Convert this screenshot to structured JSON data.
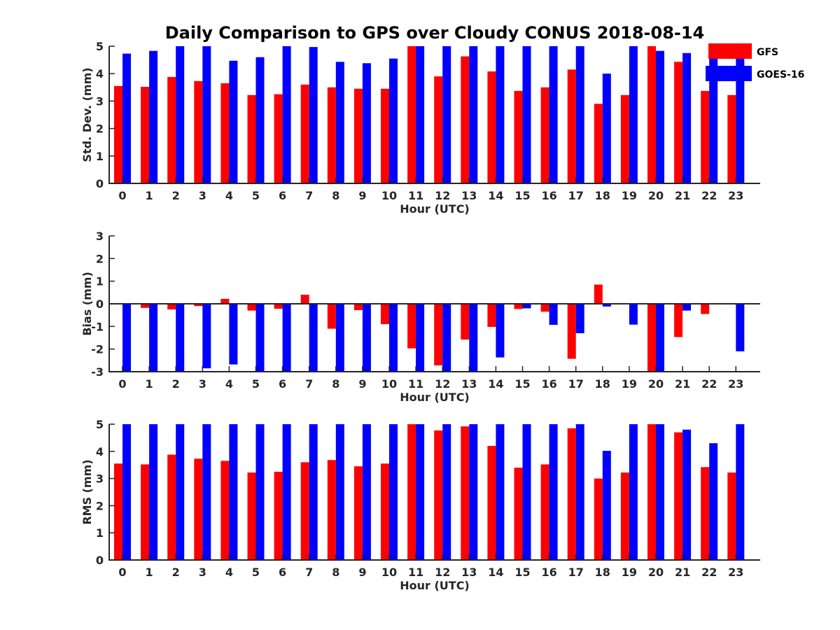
{
  "title": "Daily Comparison to GPS over Cloudy CONUS 2018-08-14",
  "legend": {
    "placement": "top-right",
    "items": [
      {
        "label": "GFS",
        "color": "#ff0000"
      },
      {
        "label": "GOES-16",
        "color": "#0000ff"
      }
    ]
  },
  "chart_data": [
    {
      "type": "bar",
      "xlabel": "Hour (UTC)",
      "ylabel": "Std. Dev. (mm)",
      "ylim": [
        0,
        5
      ],
      "yticks": [
        0,
        1,
        2,
        3,
        4,
        5
      ],
      "grid": false,
      "categories": [
        "0",
        "1",
        "2",
        "3",
        "4",
        "5",
        "6",
        "7",
        "8",
        "9",
        "10",
        "11",
        "12",
        "13",
        "14",
        "15",
        "16",
        "17",
        "18",
        "19",
        "20",
        "21",
        "22",
        "23"
      ],
      "series": [
        {
          "name": "GFS",
          "color": "#ff0000",
          "values": [
            3.55,
            3.52,
            3.88,
            3.73,
            3.65,
            3.22,
            3.25,
            3.6,
            3.5,
            3.45,
            3.45,
            5.0,
            3.9,
            4.63,
            4.08,
            3.37,
            3.5,
            4.15,
            2.9,
            3.22,
            5.0,
            4.43,
            3.37,
            3.22
          ]
        },
        {
          "name": "GOES-16",
          "color": "#0000ff",
          "values": [
            4.73,
            4.83,
            5.0,
            5.0,
            4.47,
            4.6,
            5.0,
            4.97,
            4.43,
            4.38,
            4.55,
            5.0,
            5.0,
            5.0,
            5.0,
            5.0,
            5.0,
            5.0,
            4.0,
            5.0,
            4.83,
            4.75,
            5.0,
            5.0
          ]
        }
      ]
    },
    {
      "type": "bar",
      "xlabel": "Hour (UTC)",
      "ylabel": "Bias (mm)",
      "ylim": [
        -3,
        3
      ],
      "yticks": [
        -3,
        -2,
        -1,
        0,
        1,
        2,
        3
      ],
      "grid": false,
      "zero_line": true,
      "categories": [
        "0",
        "1",
        "2",
        "3",
        "4",
        "5",
        "6",
        "7",
        "8",
        "9",
        "10",
        "11",
        "12",
        "13",
        "14",
        "15",
        "16",
        "17",
        "18",
        "19",
        "20",
        "21",
        "22",
        "23"
      ],
      "series": [
        {
          "name": "GFS",
          "color": "#ff0000",
          "values": [
            0.0,
            -0.18,
            -0.25,
            -0.1,
            0.22,
            -0.3,
            -0.22,
            0.4,
            -1.1,
            -0.28,
            -0.9,
            -1.97,
            -2.72,
            -1.58,
            -1.02,
            -0.23,
            -0.35,
            -2.43,
            0.85,
            -0.02,
            -3.0,
            -1.47,
            -0.45,
            0.0
          ]
        },
        {
          "name": "GOES-16",
          "color": "#0000ff",
          "values": [
            -3.0,
            -3.0,
            -3.0,
            -2.85,
            -2.68,
            -3.0,
            -3.0,
            -3.0,
            -3.0,
            -3.0,
            -3.0,
            -3.0,
            -3.0,
            -3.0,
            -2.37,
            -0.2,
            -0.93,
            -1.3,
            -0.12,
            -0.92,
            -3.0,
            -0.3,
            0.0,
            -2.1
          ]
        }
      ]
    },
    {
      "type": "bar",
      "xlabel": "Hour (UTC)",
      "ylabel": "RMS (mm)",
      "ylim": [
        0,
        5
      ],
      "yticks": [
        0,
        1,
        2,
        3,
        4,
        5
      ],
      "grid": false,
      "categories": [
        "0",
        "1",
        "2",
        "3",
        "4",
        "5",
        "6",
        "7",
        "8",
        "9",
        "10",
        "11",
        "12",
        "13",
        "14",
        "15",
        "16",
        "17",
        "18",
        "19",
        "20",
        "21",
        "22",
        "23"
      ],
      "series": [
        {
          "name": "GFS",
          "color": "#ff0000",
          "values": [
            3.55,
            3.52,
            3.88,
            3.73,
            3.65,
            3.22,
            3.25,
            3.6,
            3.68,
            3.45,
            3.55,
            5.0,
            4.77,
            4.92,
            4.2,
            3.4,
            3.52,
            4.85,
            3.0,
            3.22,
            5.0,
            4.7,
            3.42,
            3.22
          ]
        },
        {
          "name": "GOES-16",
          "color": "#0000ff",
          "values": [
            5.0,
            5.0,
            5.0,
            5.0,
            5.0,
            5.0,
            5.0,
            5.0,
            5.0,
            5.0,
            5.0,
            5.0,
            5.0,
            5.0,
            5.0,
            5.0,
            5.0,
            5.0,
            4.02,
            5.0,
            5.0,
            4.8,
            4.3,
            5.0
          ]
        }
      ]
    }
  ]
}
